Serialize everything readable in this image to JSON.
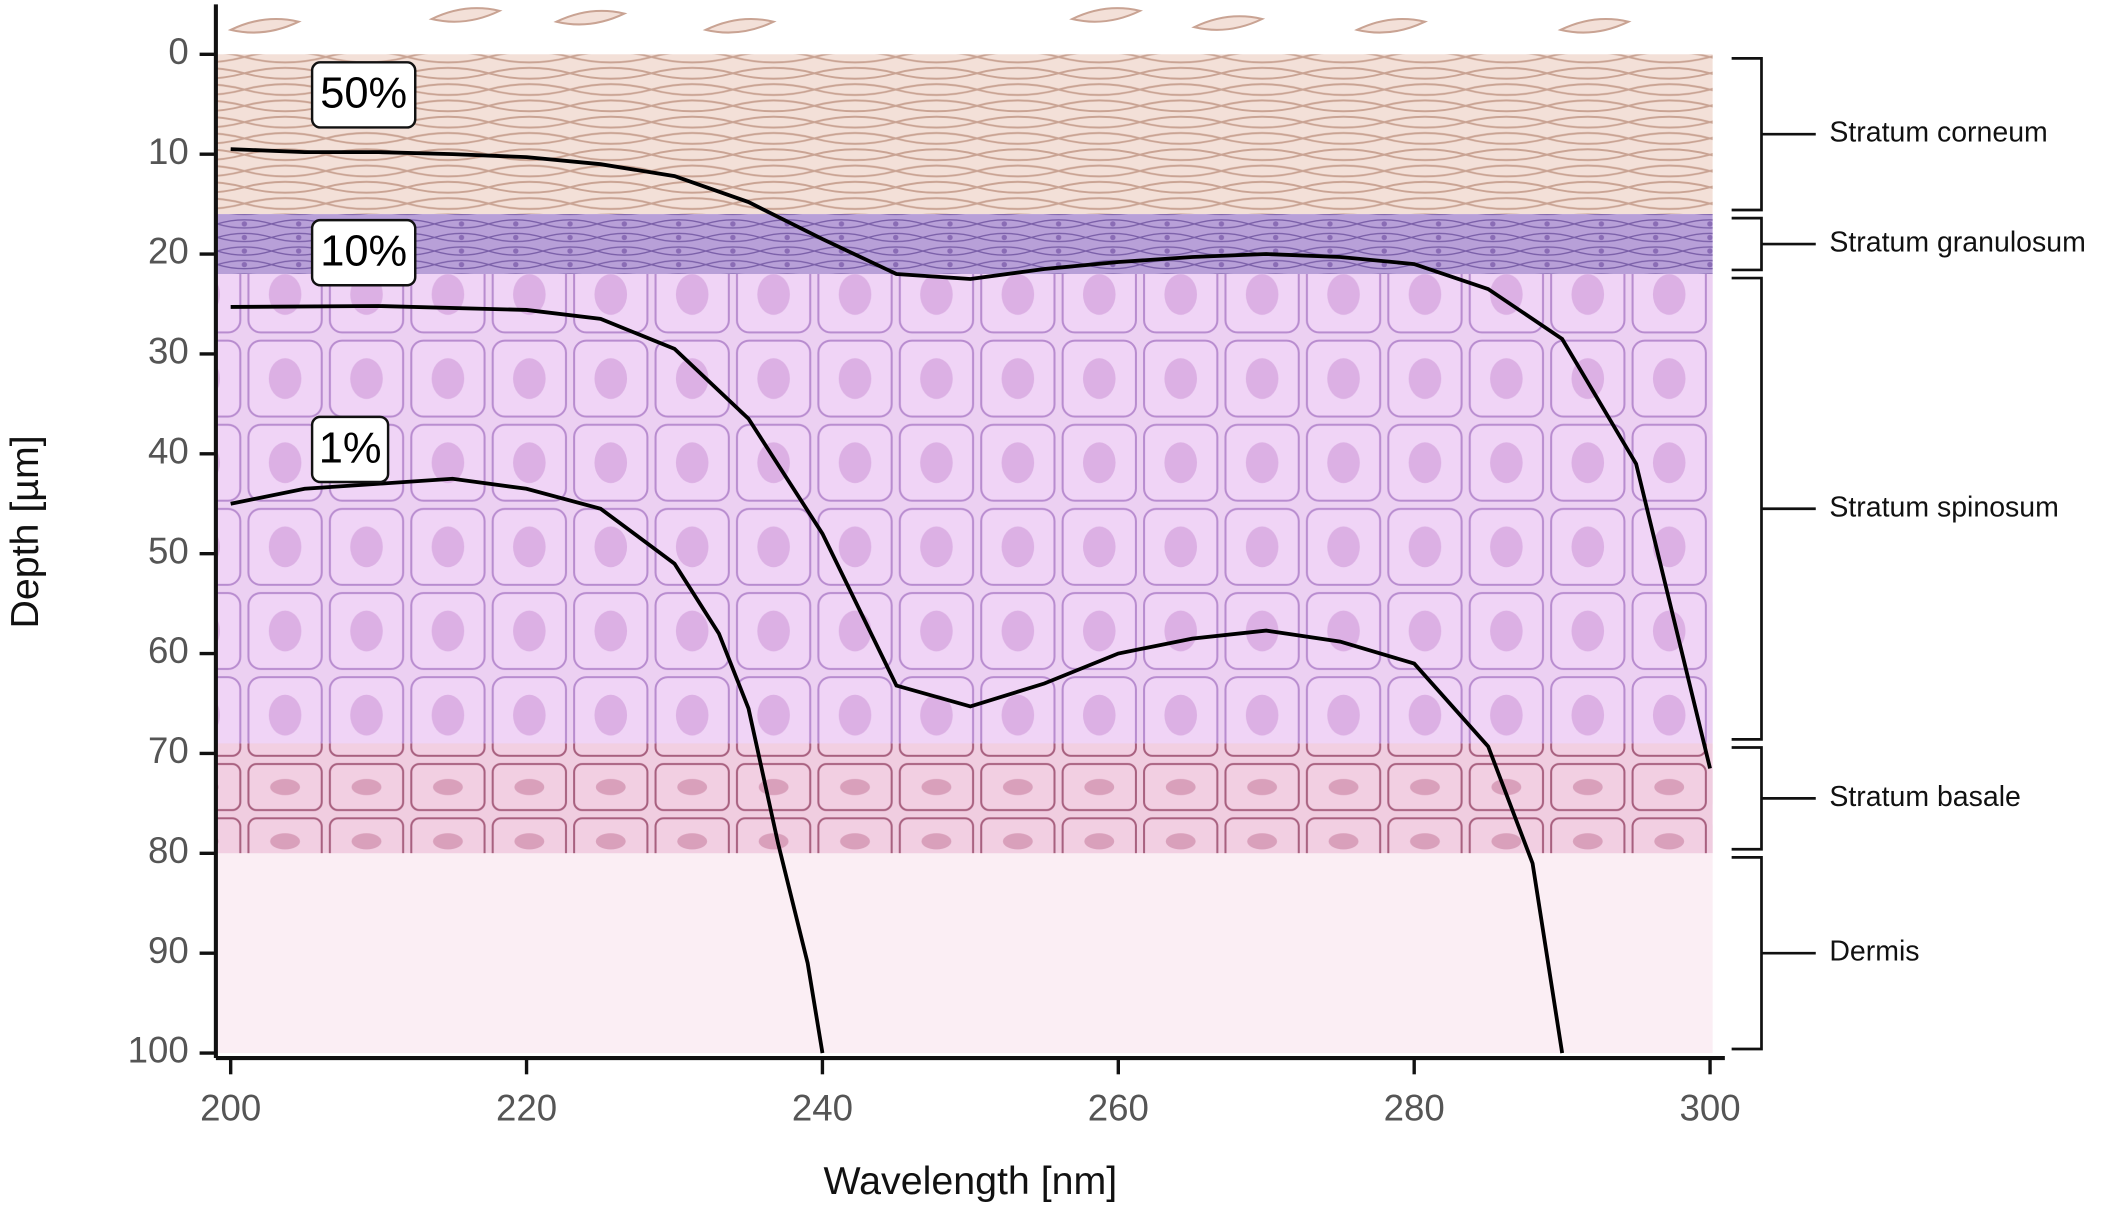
{
  "chart_data": {
    "type": "line",
    "x_label": "Wavelength [nm]",
    "y_label": "Depth [µm]",
    "xlim": [
      199,
      301
    ],
    "xticks": [
      200,
      220,
      240,
      260,
      280,
      300
    ],
    "ylim": [
      -5,
      100.5
    ],
    "yticks": [
      0,
      10,
      20,
      30,
      40,
      50,
      60,
      70,
      80,
      90,
      100
    ],
    "y_inverted": true,
    "layers": [
      {
        "name": "Stratum corneum",
        "top": 0,
        "bottom": 16,
        "color": "#f3e0d8"
      },
      {
        "name": "Stratum granulosum",
        "top": 16,
        "bottom": 22,
        "color": "#b8a0d8"
      },
      {
        "name": "Stratum spinosum",
        "top": 22,
        "bottom": 69,
        "color": "#ecd0f2"
      },
      {
        "name": "Stratum basale",
        "top": 69,
        "bottom": 80,
        "color": "#f0cde0"
      },
      {
        "name": "Dermis",
        "top": 80,
        "bottom": 100,
        "color": "#fbeef4"
      }
    ],
    "series": [
      {
        "name": "50%",
        "color": "#000000",
        "x": [
          200,
          205,
          210,
          215,
          220,
          225,
          230,
          235,
          240,
          245,
          250,
          255,
          260,
          265,
          270,
          275,
          280,
          285,
          290,
          295,
          300
        ],
        "values": [
          9.5,
          9.8,
          9.8,
          10,
          10.3,
          11,
          12.2,
          14.8,
          18.5,
          22,
          22.5,
          21.5,
          20.8,
          20.3,
          20,
          20.3,
          21,
          23.5,
          28.5,
          41,
          71.5
        ]
      },
      {
        "name": "10%",
        "color": "#000000",
        "x": [
          200,
          210,
          220,
          225,
          230,
          235,
          240,
          245,
          250,
          255,
          260,
          265,
          270,
          275,
          280,
          285,
          288,
          290
        ],
        "values": [
          25.3,
          25.2,
          25.6,
          26.5,
          29.5,
          36.5,
          48,
          63.2,
          65.3,
          63,
          60,
          58.5,
          57.7,
          58.8,
          61,
          69.3,
          81,
          100
        ]
      },
      {
        "name": "1%",
        "color": "#000000",
        "x": [
          200,
          205,
          210,
          215,
          220,
          225,
          230,
          233,
          235,
          237,
          239,
          240
        ],
        "values": [
          45,
          43.5,
          43,
          42.5,
          43.5,
          45.5,
          51,
          58,
          65.5,
          79,
          91,
          100
        ]
      }
    ]
  }
}
